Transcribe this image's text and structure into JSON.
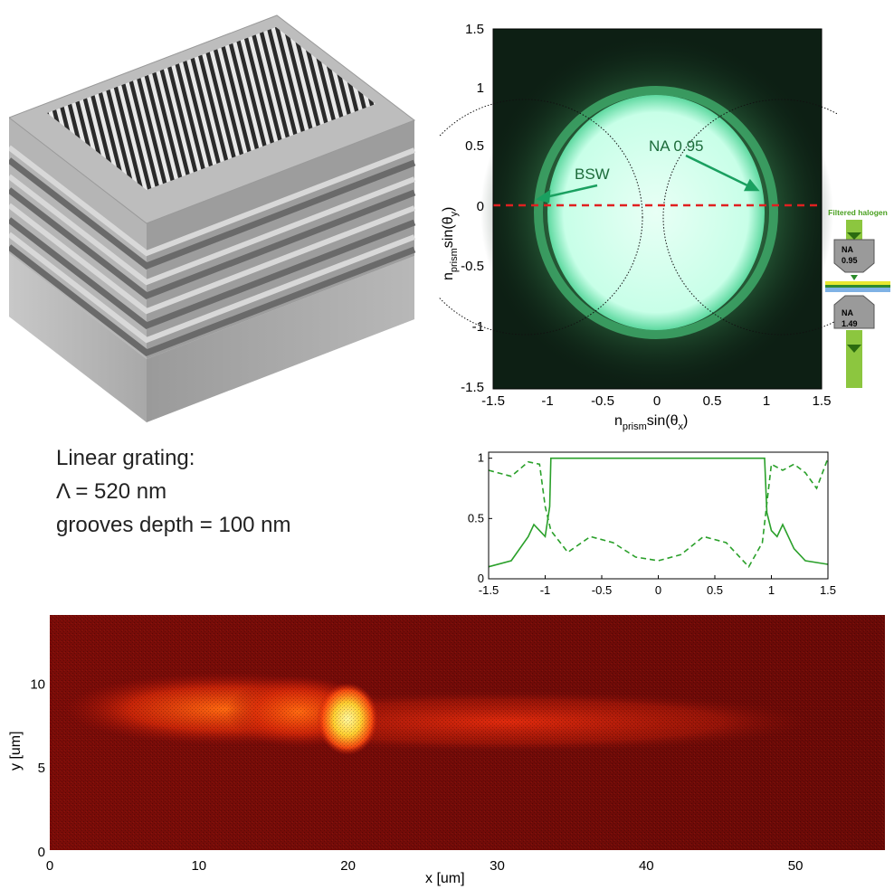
{
  "caption": {
    "line1": "Linear grating:",
    "line2": "Λ = 520 nm",
    "line3": "grooves depth = 100 nm"
  },
  "bfp_image": {
    "x_ticks": [
      "-1.5",
      "-1",
      "-0.5",
      "0",
      "0.5",
      "1",
      "1.5"
    ],
    "y_ticks": [
      "1.5",
      "1",
      "0.5",
      "0",
      "-0.5",
      "-1",
      "-1.5"
    ],
    "xlabel": {
      "n": "n",
      "sub": "prism",
      "fn": "sin(θ",
      "sub2": "x",
      "close": ")"
    },
    "ylabel": {
      "n": "n",
      "sub": "prism",
      "fn": "sin(θ",
      "sub2": "y",
      "close": ")"
    },
    "annotation_bsw": "BSW",
    "annotation_na": "NA 0.95",
    "colors": {
      "glow": "#dffff0",
      "ring": "#2aa05a",
      "dashed_line": "#e02020",
      "arrow": "#1aa060"
    }
  },
  "setup_schematic": {
    "title": "Filtered halogen",
    "top_objective": "NA\n0.95",
    "top_na": "NA",
    "top_val": "0.95",
    "bottom_na": "NA",
    "bottom_val": "1.49"
  },
  "chart_data": [
    {
      "type": "line",
      "xlim": [
        -1.5,
        1.5
      ],
      "ylim": [
        0,
        1.05
      ],
      "x_ticks": [
        "-1.5",
        "-1",
        "-0.5",
        "0",
        "0.5",
        "1",
        "1.5"
      ],
      "y_ticks": [
        "1",
        "0.5",
        "0"
      ],
      "series": [
        {
          "style": "solid",
          "x": [
            -1.5,
            -1.3,
            -1.15,
            -1.1,
            -1.05,
            -1.0,
            -0.96,
            -0.95,
            -0.5,
            0,
            0.5,
            0.9,
            0.94,
            0.96,
            1.0,
            1.05,
            1.1,
            1.2,
            1.3,
            1.5
          ],
          "y": [
            0.1,
            0.15,
            0.35,
            0.45,
            0.4,
            0.35,
            0.6,
            1.0,
            1.0,
            1.0,
            1.0,
            1.0,
            1.0,
            0.55,
            0.4,
            0.35,
            0.45,
            0.25,
            0.15,
            0.12
          ]
        },
        {
          "style": "dashed",
          "x": [
            -1.5,
            -1.3,
            -1.15,
            -1.05,
            -1.0,
            -0.95,
            -0.8,
            -0.6,
            -0.4,
            -0.2,
            0,
            0.2,
            0.4,
            0.6,
            0.8,
            0.92,
            1.0,
            1.1,
            1.2,
            1.3,
            1.4,
            1.5
          ],
          "y": [
            0.9,
            0.85,
            0.97,
            0.95,
            0.6,
            0.4,
            0.22,
            0.35,
            0.3,
            0.18,
            0.15,
            0.2,
            0.35,
            0.3,
            0.1,
            0.3,
            0.95,
            0.9,
            0.95,
            0.88,
            0.75,
            1.0
          ]
        }
      ]
    },
    {
      "type": "heatmap",
      "xlabel": "x [um]",
      "ylabel": "y [um]",
      "xlim": [
        0,
        56
      ],
      "ylim": [
        0,
        14
      ],
      "x_ticks": [
        "0",
        "10",
        "20",
        "30",
        "40",
        "50"
      ],
      "y_ticks": [
        "10",
        "5",
        "0"
      ],
      "colors": {
        "background": "#5a0806",
        "mid": "#b81408",
        "hot": "#fff07a"
      }
    }
  ]
}
